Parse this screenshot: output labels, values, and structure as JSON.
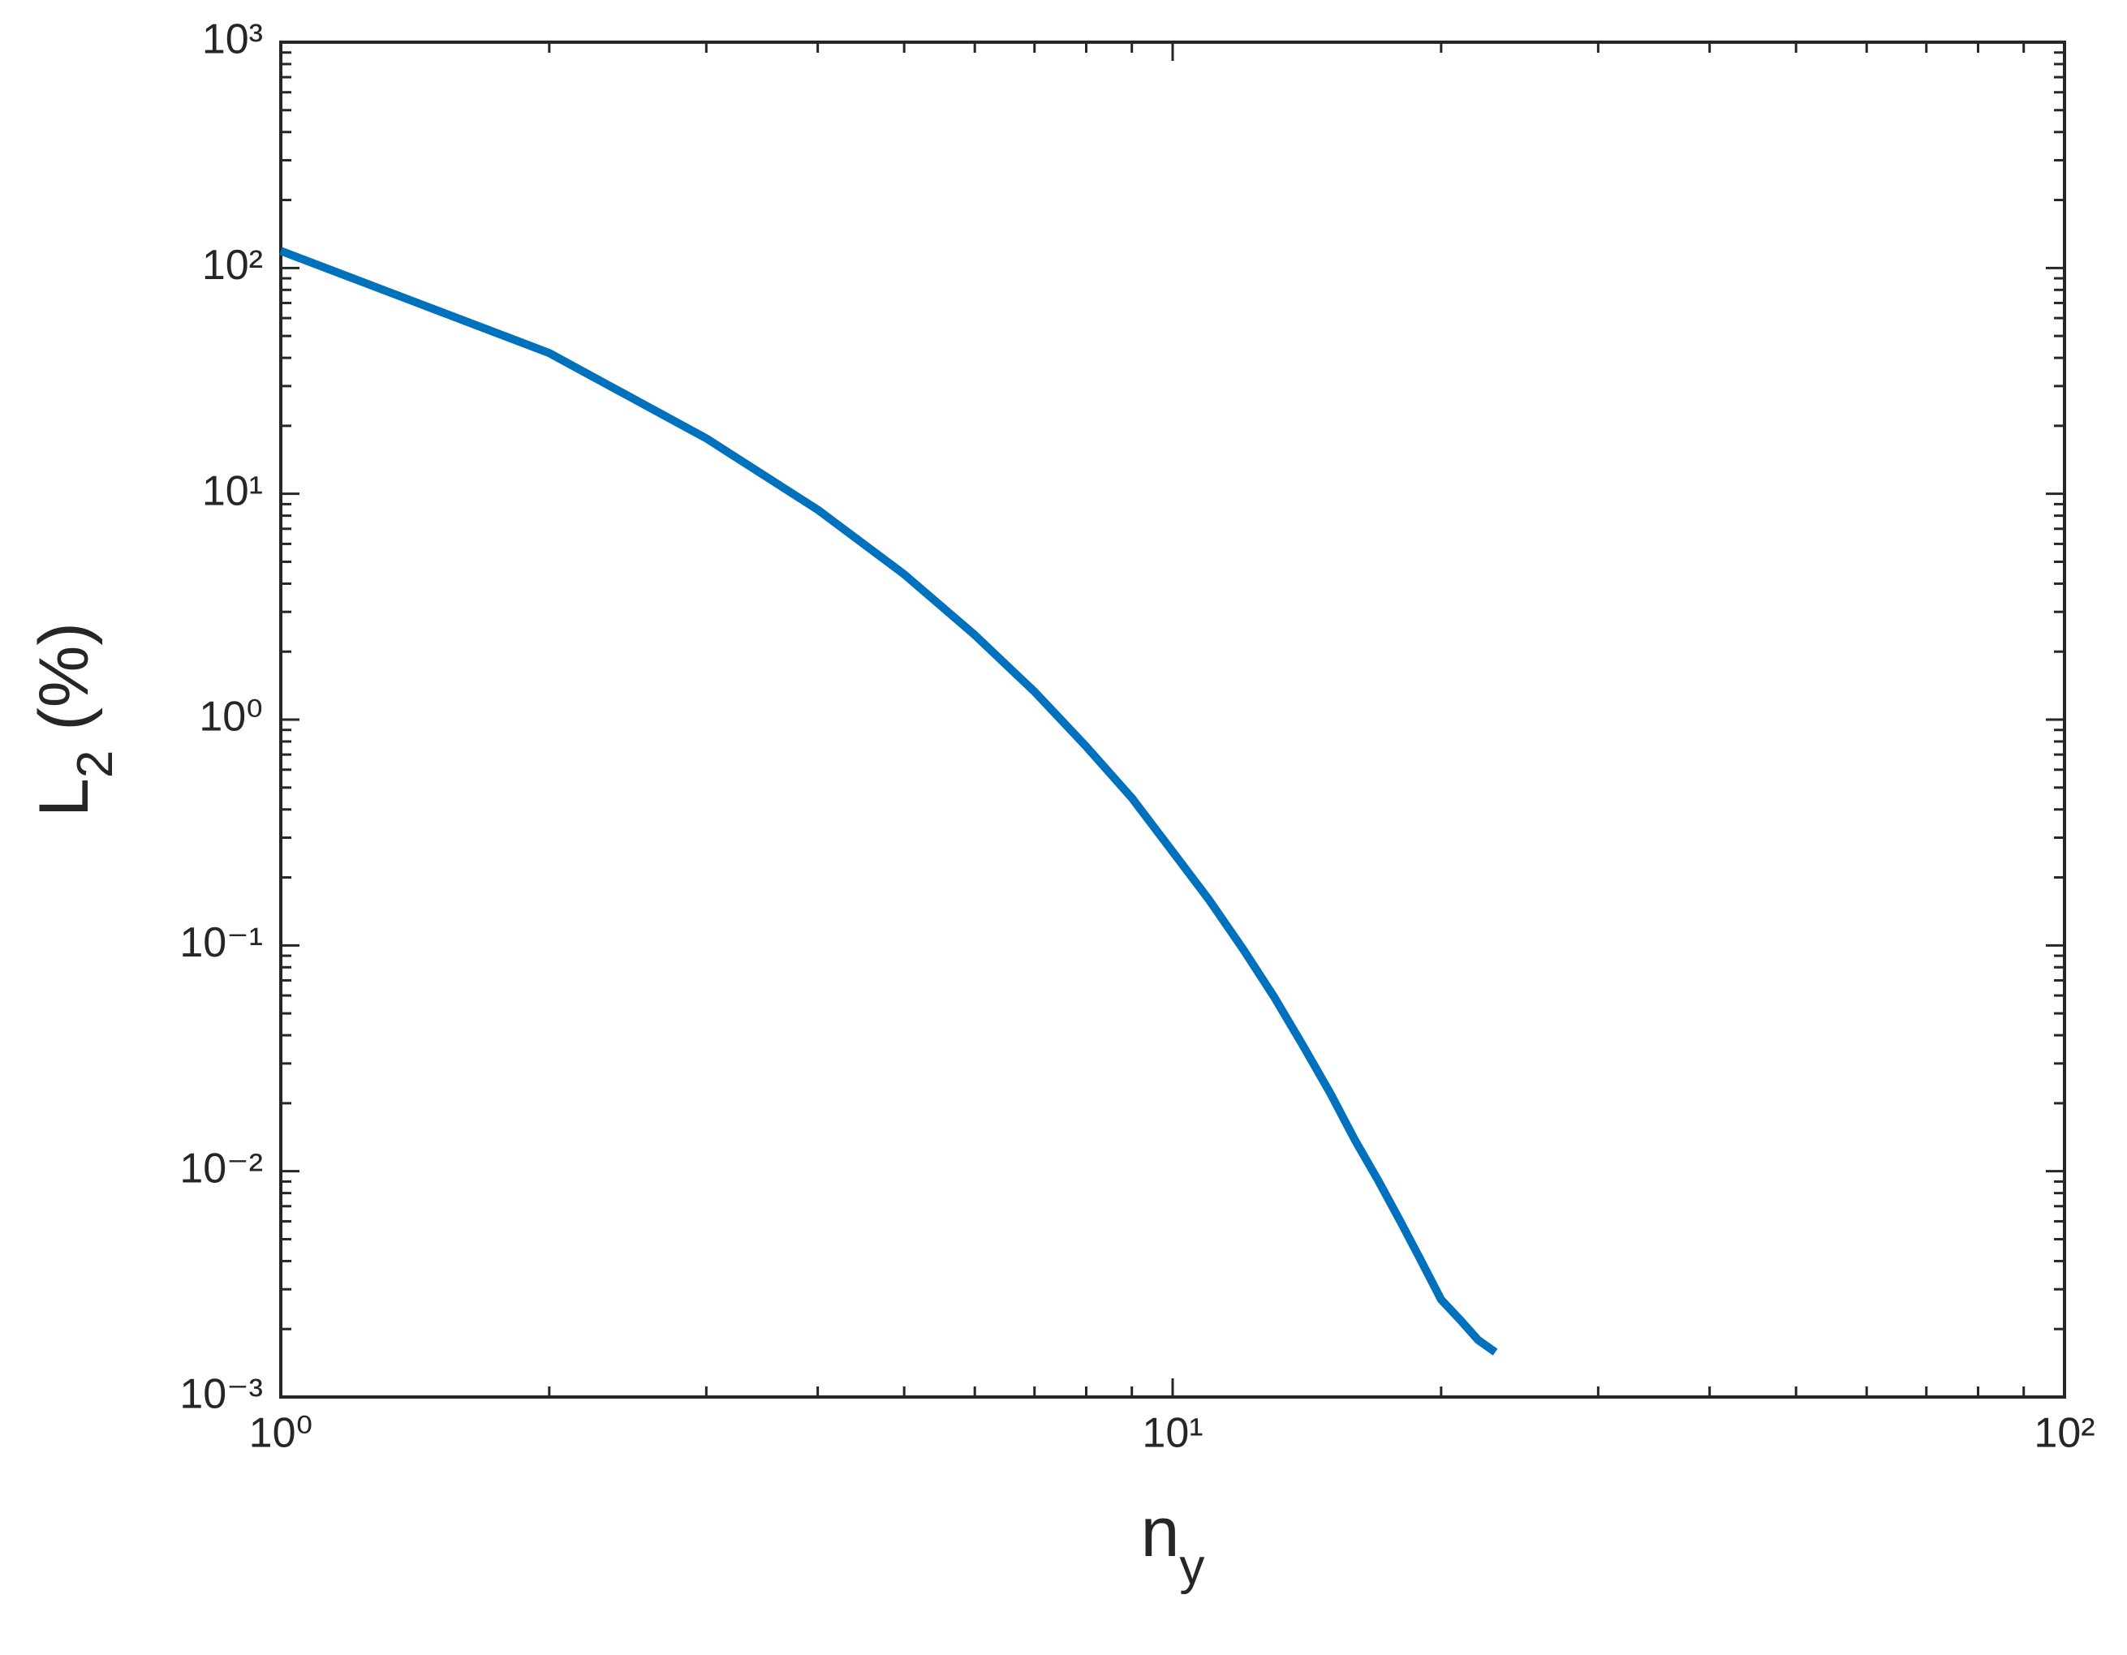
{
  "chart_data": {
    "type": "line",
    "xlabel": {
      "base": "n",
      "sub": "y"
    },
    "ylabel": {
      "base": "L",
      "sub": "2",
      "rest": " (%)"
    },
    "x": [
      1,
      2,
      3,
      4,
      5,
      6,
      7,
      8,
      9,
      10,
      11,
      12,
      13,
      14,
      15,
      16,
      17,
      18,
      19,
      20,
      21,
      22,
      23
    ],
    "series": [
      {
        "color": "#0072bd",
        "values": [
          119,
          42,
          17.6,
          8.5,
          4.4,
          2.37,
          1.33,
          0.76,
          0.45,
          0.26,
          0.158,
          0.096,
          0.059,
          0.036,
          0.0224,
          0.0138,
          0.0091,
          0.006,
          0.004,
          0.0027,
          0.0022,
          0.00179,
          0.00158
        ]
      }
    ],
    "xscale": "log",
    "yscale": "log",
    "xlim": [
      1,
      100
    ],
    "ylim": [
      0.001,
      1000
    ],
    "xticks": [
      {
        "value": 1,
        "label": "10⁰"
      },
      {
        "value": 10,
        "label": "10¹"
      },
      {
        "value": 100,
        "label": "10²"
      }
    ],
    "yticks": [
      {
        "value": 0.001,
        "label": "10⁻³"
      },
      {
        "value": 0.01,
        "label": "10⁻²"
      },
      {
        "value": 0.1,
        "label": "10⁻¹"
      },
      {
        "value": 1,
        "label": "10⁰"
      },
      {
        "value": 10,
        "label": "10¹"
      },
      {
        "value": 100,
        "label": "10²"
      },
      {
        "value": 1000,
        "label": "10³"
      }
    ],
    "grid": false,
    "box": true
  }
}
